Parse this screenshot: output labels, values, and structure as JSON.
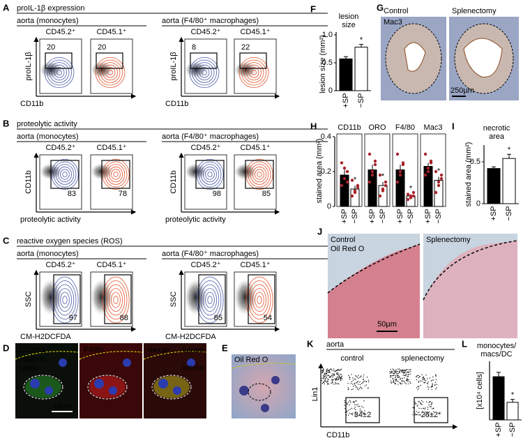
{
  "A": {
    "letter": "A",
    "title": "proIL-1β expression",
    "groups": [
      "aorta (monocytes)",
      "aorta (F4/80⁺ macrophages)"
    ],
    "ylabel": "proIL-1β",
    "xlabel": "CD11b",
    "plots": [
      {
        "label": "CD45.2⁺",
        "color": "#4a5aa8",
        "value": 20
      },
      {
        "label": "CD45.1⁺",
        "color": "#e0522a",
        "value": 20
      },
      {
        "label": "CD45.2⁺",
        "color": "#4a5aa8",
        "value": 8
      },
      {
        "label": "CD45.1⁺",
        "color": "#e0522a",
        "value": 22
      }
    ]
  },
  "B": {
    "letter": "B",
    "title": "proteolytic activity",
    "groups": [
      "aorta (monocytes)",
      "aorta (F4/80⁺ macrophages)"
    ],
    "ylabel": "CD11b",
    "xlabel": "proteolytic activity",
    "plots": [
      {
        "label": "CD45.2⁺",
        "color": "#4a5aa8",
        "value": 83
      },
      {
        "label": "CD45.1⁺",
        "color": "#e0522a",
        "value": 78
      },
      {
        "label": "CD45.2⁺",
        "color": "#4a5aa8",
        "value": 98
      },
      {
        "label": "CD45.1⁺",
        "color": "#e0522a",
        "value": 85
      }
    ]
  },
  "C": {
    "letter": "C",
    "title": "reactive oxygen species (ROS)",
    "groups": [
      "aorta (monocytes)",
      "aorta (F4/80⁺ macrophages)"
    ],
    "ylabel": "SSC",
    "xlabel": "CM-H2DCFDA",
    "plots": [
      {
        "label": "CD45.2⁺",
        "color": "#4a5aa8",
        "value": 97
      },
      {
        "label": "CD45.1⁺",
        "color": "#e0522a",
        "value": 88
      },
      {
        "label": "CD45.2⁺",
        "color": "#4a5aa8",
        "value": 85
      },
      {
        "label": "CD45.1⁺",
        "color": "#e0522a",
        "value": 54
      }
    ]
  },
  "D": {
    "letter": "D",
    "channels": [
      "CD45.1",
      "F4/80",
      "merge"
    ],
    "note": [
      "(splenic",
      "cells)"
    ],
    "regions": [
      "lumen",
      "intima"
    ],
    "scale": "10µm"
  },
  "E": {
    "letter": "E",
    "stain": "Oil Red O"
  },
  "F": {
    "letter": "F",
    "title": [
      "lesion",
      "size"
    ],
    "ylabel": "lesion size (mm²)",
    "categories": [
      "+SP",
      "−SP"
    ],
    "values": [
      0.57,
      0.78
    ],
    "errors": [
      0.04,
      0.05
    ],
    "ylim": [
      0,
      1.05
    ],
    "yticks": [
      0,
      0.5,
      {
        "value": 1,
        "label": "1.0"
      }
    ],
    "colors": [
      "#000000",
      "#ffffff"
    ],
    "annotation": "*"
  },
  "G": {
    "letter": "G",
    "conditions": [
      "Control",
      "Splenectomy"
    ],
    "stain": "Mac3",
    "scale": "250µm"
  },
  "H": {
    "letter": "H",
    "ylabel": "stained area (mm²)",
    "ylim": [
      0,
      0.4
    ],
    "yticks": [
      0,
      0.2,
      0.4
    ],
    "categories": [
      "+SP",
      "−SP"
    ],
    "colors": [
      "#000000",
      "#ffffff"
    ],
    "point_color": "#a8232a",
    "groups": [
      {
        "name": "CD11b",
        "values": [
          0.18,
          0.1
        ],
        "errors": [
          0.03,
          0.02
        ],
        "annotation": "*",
        "points": [
          [
            0.12,
            0.16,
            0.2,
            0.25,
            0.22,
            0.14
          ],
          [
            0.06,
            0.09,
            0.12,
            0.15,
            0.08,
            0.11
          ]
        ]
      },
      {
        "name": "ORO",
        "values": [
          0.21,
          0.12
        ],
        "errors": [
          0.03,
          0.02
        ],
        "annotation": "*",
        "points": [
          [
            0.14,
            0.18,
            0.24,
            0.3,
            0.2,
            0.26
          ],
          [
            0.06,
            0.1,
            0.14,
            0.18,
            0.09,
            0.12
          ]
        ]
      },
      {
        "name": "F4/80",
        "values": [
          0.21,
          0.06
        ],
        "errors": [
          0.03,
          0.01
        ],
        "annotation": "*",
        "points": [
          [
            0.14,
            0.18,
            0.24,
            0.3,
            0.2,
            0.25
          ],
          [
            0.04,
            0.05,
            0.06,
            0.07,
            0.06,
            0.08
          ]
        ]
      },
      {
        "name": "Mac3",
        "values": [
          0.23,
          0.15
        ],
        "errors": [
          0.02,
          0.02
        ],
        "annotation": "*",
        "points": [
          [
            0.18,
            0.22,
            0.26,
            0.3,
            0.2,
            0.25
          ],
          [
            0.08,
            0.12,
            0.16,
            0.2,
            0.14,
            0.18
          ]
        ]
      }
    ]
  },
  "I": {
    "letter": "I",
    "title": [
      "necrotic",
      "area"
    ],
    "ylabel": "stained area (mm²)",
    "categories": [
      "+SP",
      "−SP"
    ],
    "values": [
      0.42,
      0.54
    ],
    "errors": [
      0.02,
      0.05
    ],
    "ylim": [
      0,
      0.7
    ],
    "yticks": [
      0,
      0.5
    ],
    "colors": [
      "#000000",
      "#ffffff"
    ],
    "annotation": "*"
  },
  "J": {
    "letter": "J",
    "conditions": [
      "Control",
      "Splenectomy"
    ],
    "stain": "Oil Red O",
    "scale": "50µm"
  },
  "K": {
    "letter": "K",
    "title": "aorta",
    "conditions": [
      "control",
      "splenectomy"
    ],
    "ylabel": "Lin1",
    "xlabel": "CD11b",
    "gates": [
      "34±2",
      "26±2*"
    ]
  },
  "L": {
    "letter": "L",
    "title": [
      "monocytes/",
      "macs/DC"
    ],
    "ylabel": "[x10⁴ cells]",
    "categories": [
      "+SP",
      "−SP"
    ],
    "values": [
      5.9,
      2.4
    ],
    "errors": [
      0.6,
      0.4
    ],
    "ylim": [
      0,
      8
    ],
    "colors": [
      "#000000",
      "#ffffff"
    ],
    "annotation": "*"
  }
}
